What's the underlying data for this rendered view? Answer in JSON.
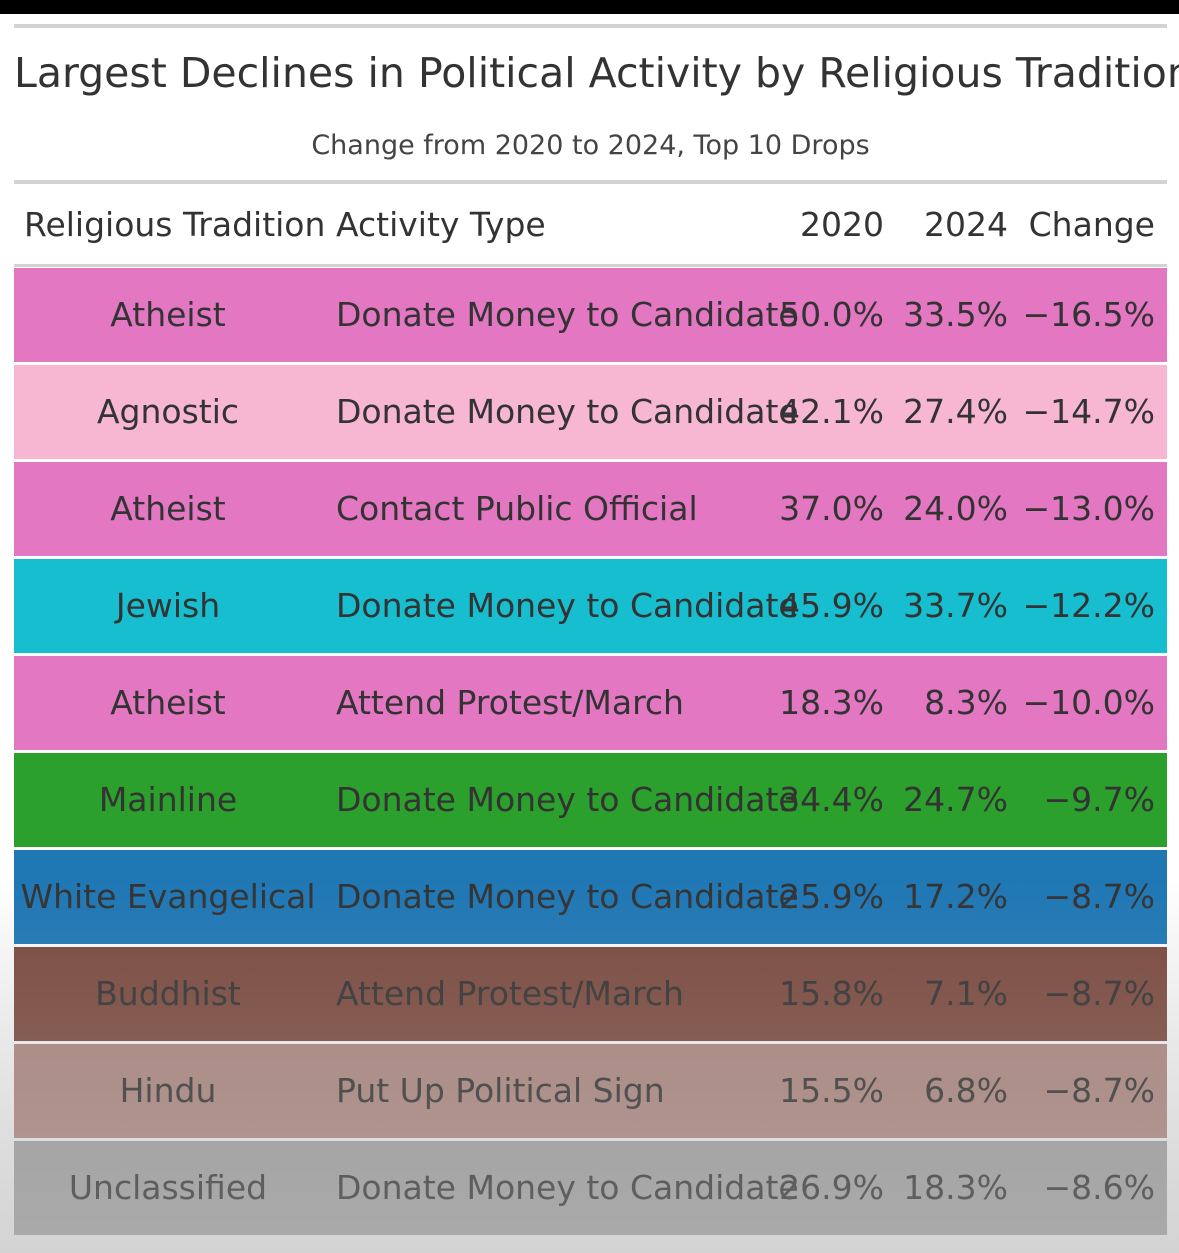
{
  "chart_data": {
    "type": "table",
    "title": "Largest Declines in Political Activity by Religious Tradition",
    "subtitle": "Change from 2020 to 2024, Top 10 Drops",
    "columns": [
      "Religious Tradition",
      "Activity Type",
      "2020",
      "2024",
      "Change"
    ],
    "rows": [
      {
        "tradition": "Atheist",
        "activity": "Donate Money to Candidate",
        "y2020": "50.0%",
        "y2024": "33.5%",
        "change": "−16.5%",
        "color": "#e377c2"
      },
      {
        "tradition": "Agnostic",
        "activity": "Donate Money to Candidate",
        "y2020": "42.1%",
        "y2024": "27.4%",
        "change": "−14.7%",
        "color": "#f7b6d2"
      },
      {
        "tradition": "Atheist",
        "activity": "Contact Public Official",
        "y2020": "37.0%",
        "y2024": "24.0%",
        "change": "−13.0%",
        "color": "#e377c2"
      },
      {
        "tradition": "Jewish",
        "activity": "Donate Money to Candidate",
        "y2020": "45.9%",
        "y2024": "33.7%",
        "change": "−12.2%",
        "color": "#17becf"
      },
      {
        "tradition": "Atheist",
        "activity": "Attend Protest/March",
        "y2020": "18.3%",
        "y2024": "8.3%",
        "change": "−10.0%",
        "color": "#e377c2"
      },
      {
        "tradition": "Mainline",
        "activity": "Donate Money to Candidate",
        "y2020": "34.4%",
        "y2024": "24.7%",
        "change": "−9.7%",
        "color": "#2ca02c"
      },
      {
        "tradition": "White Evangelical",
        "activity": "Donate Money to Candidate",
        "y2020": "25.9%",
        "y2024": "17.2%",
        "change": "−8.7%",
        "color": "#1f77b4"
      },
      {
        "tradition": "Buddhist",
        "activity": "Attend Protest/March",
        "y2020": "15.8%",
        "y2024": "7.1%",
        "change": "−8.7%",
        "color": "#7a4a3f"
      },
      {
        "tradition": "Hindu",
        "activity": "Put Up Political Sign",
        "y2020": "15.5%",
        "y2024": "6.8%",
        "change": "−8.7%",
        "color": "#a8837c"
      },
      {
        "tradition": "Unclassified",
        "activity": "Donate Money to Candidate",
        "y2020": "26.9%",
        "y2024": "18.3%",
        "change": "−8.6%",
        "color": "#9a9a9a"
      }
    ]
  }
}
